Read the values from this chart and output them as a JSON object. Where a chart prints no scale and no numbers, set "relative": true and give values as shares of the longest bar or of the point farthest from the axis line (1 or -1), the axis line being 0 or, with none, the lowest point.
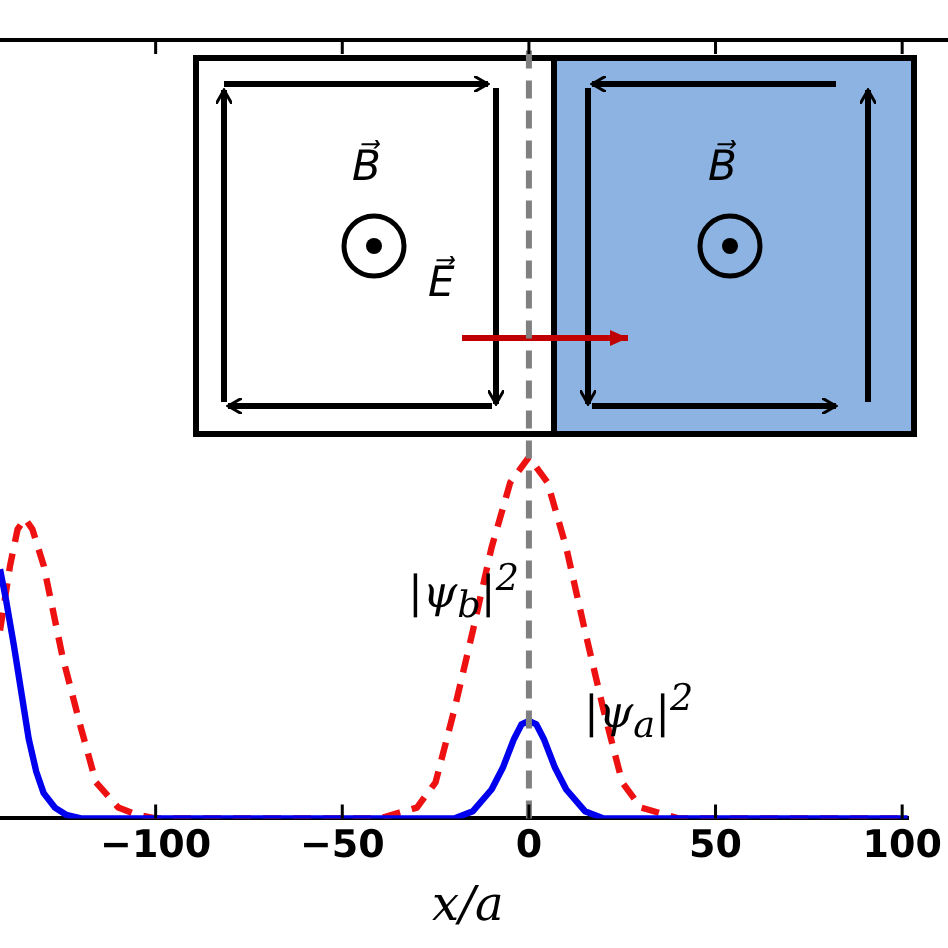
{
  "chart_data": {
    "type": "line",
    "relative": true,
    "xlabel": "x/a",
    "xlim": [
      -141.7,
      101.5
    ],
    "xticks": [
      -100,
      -50,
      0,
      50,
      100
    ],
    "grid": false,
    "legend": false,
    "marker": "none",
    "series": [
      {
        "color": "#0000ee",
        "line_style": "solid",
        "x": [
          -141.7,
          -140,
          -138,
          -136,
          -134,
          -132,
          -130,
          -127,
          -124,
          -120,
          -20,
          -15,
          -10,
          -7,
          -4,
          -2,
          0,
          2,
          4,
          7,
          10,
          15,
          20,
          101.5
        ],
        "values": [
          0.69,
          0.6,
          0.48,
          0.35,
          0.22,
          0.13,
          0.07,
          0.03,
          0.01,
          0,
          0,
          0.02,
          0.08,
          0.14,
          0.22,
          0.26,
          0.27,
          0.26,
          0.22,
          0.14,
          0.08,
          0.02,
          0,
          0
        ]
      },
      {
        "color": "#ee1111",
        "line_style": "dashed",
        "x": [
          -141.7,
          -139,
          -137,
          -135,
          -133,
          -130,
          -127,
          -125,
          -120,
          -116,
          -110,
          -105,
          -100,
          -40,
          -30,
          -25,
          -20,
          -15,
          -10,
          -5,
          0,
          5,
          10,
          15,
          20,
          25,
          30,
          40,
          101.5
        ],
        "values": [
          0.52,
          0.7,
          0.8,
          0.83,
          0.8,
          0.7,
          0.55,
          0.45,
          0.25,
          0.1,
          0.03,
          0.01,
          0,
          0,
          0.03,
          0.1,
          0.3,
          0.52,
          0.75,
          0.93,
          1,
          0.93,
          0.75,
          0.52,
          0.3,
          0.1,
          0.03,
          0,
          0
        ]
      }
    ],
    "ref_lines": [
      {
        "axis": "x",
        "value": 0,
        "color": "#808080",
        "line_style": "dashed"
      }
    ],
    "annotations": [
      "B⃗",
      "B⃗",
      "E⃗",
      "|ψ$_{b}$|$^{2}$",
      "|ψ$_{a}$|$^{2}$"
    ]
  }
}
